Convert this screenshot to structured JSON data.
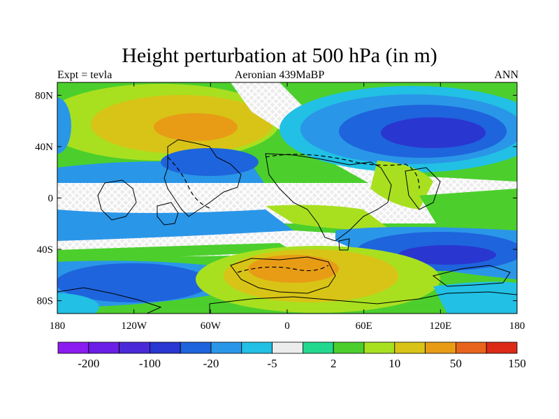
{
  "title": "Height perturbation at 500 hPa (in m)",
  "left_label": "Expt = tevla",
  "center_label": "Aeronian 439MaBP",
  "right_label": "ANN",
  "map": {
    "lat_ticks": [
      "80N",
      "40N",
      "0",
      "40S",
      "80S"
    ],
    "lat_values": [
      80,
      40,
      0,
      -40,
      -80
    ],
    "lon_ticks": [
      "180",
      "120W",
      "60W",
      "0",
      "60E",
      "120E",
      "180"
    ],
    "lon_values": [
      -180,
      -120,
      -60,
      0,
      60,
      120,
      180
    ],
    "lon_range": [
      -180,
      180
    ],
    "lat_range": [
      -90,
      90
    ]
  },
  "colorbar": {
    "colors": [
      "#8b1cf0",
      "#6a1ee6",
      "#4a2ad8",
      "#2a36d0",
      "#1e64dc",
      "#2a96e8",
      "#21c0e4",
      "#ececec",
      "#22d88e",
      "#4ccf2c",
      "#a8e020",
      "#d8c416",
      "#e89c16",
      "#e8641c",
      "#dd2a16"
    ],
    "labels": [
      "-200",
      "-100",
      "-20",
      "-5",
      "2",
      "10",
      "50",
      "150"
    ]
  }
}
